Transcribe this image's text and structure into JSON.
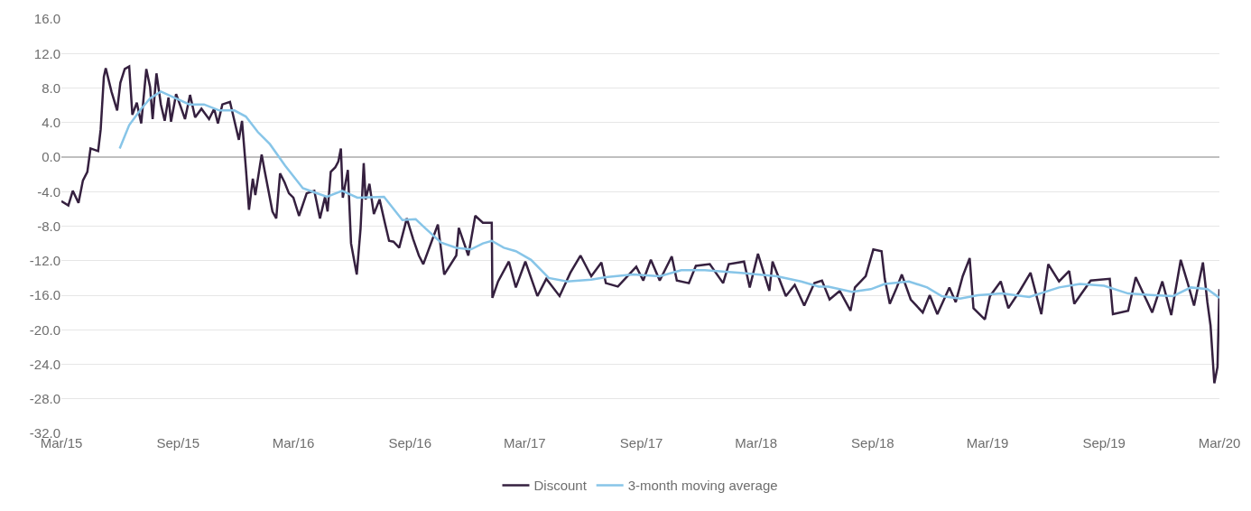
{
  "chart_data": {
    "type": "line",
    "x": [
      "2015-03-01",
      "2015-03-12",
      "2015-03-19",
      "2015-03-28",
      "2015-04-04",
      "2015-04-11",
      "2015-04-16",
      "2015-04-28",
      "2015-05-02",
      "2015-05-07",
      "2015-05-10",
      "2015-05-19",
      "2015-05-28",
      "2015-06-02",
      "2015-06-09",
      "2015-06-16",
      "2015-06-21",
      "2015-06-28",
      "2015-07-05",
      "2015-07-13",
      "2015-07-19",
      "2015-07-23",
      "2015-07-29",
      "2015-08-05",
      "2015-08-11",
      "2015-08-17",
      "2015-08-21",
      "2015-08-29",
      "2015-09-05",
      "2015-09-12",
      "2015-09-20",
      "2015-09-28",
      "2015-10-08",
      "2015-10-20",
      "2015-10-28",
      "2015-11-03",
      "2015-11-10",
      "2015-11-22",
      "2015-11-29",
      "2015-12-06",
      "2015-12-11",
      "2015-12-17",
      "2015-12-22",
      "2015-12-28",
      "2016-01-01",
      "2016-01-11",
      "2016-01-16",
      "2016-01-28",
      "2016-02-03",
      "2016-02-09",
      "2016-02-16",
      "2016-02-23",
      "2016-03-01",
      "2016-03-10",
      "2016-03-22",
      "2016-04-03",
      "2016-04-12",
      "2016-04-20",
      "2016-04-24",
      "2016-04-29",
      "2016-05-06",
      "2016-05-11",
      "2016-05-15",
      "2016-05-18",
      "2016-05-26",
      "2016-05-31",
      "2016-06-05",
      "2016-06-09",
      "2016-06-15",
      "2016-06-20",
      "2016-06-23",
      "2016-06-29",
      "2016-07-06",
      "2016-07-15",
      "2016-07-23",
      "2016-07-30",
      "2016-08-06",
      "2016-08-15",
      "2016-08-27",
      "2016-09-06",
      "2016-09-15",
      "2016-09-22",
      "2016-10-15",
      "2016-10-25",
      "2016-11-13",
      "2016-11-17",
      "2016-12-02",
      "2016-12-13",
      "2016-12-25",
      "2017-01-08",
      "2017-01-09",
      "2017-01-18",
      "2017-02-04",
      "2017-02-15",
      "2017-03-02",
      "2017-03-21",
      "2017-04-04",
      "2017-04-25",
      "2017-05-12",
      "2017-05-28",
      "2017-06-14",
      "2017-06-30",
      "2017-07-07",
      "2017-07-26",
      "2017-08-24",
      "2017-09-04",
      "2017-09-16",
      "2017-09-30",
      "2017-10-19",
      "2017-10-27",
      "2017-11-15",
      "2017-11-26",
      "2017-12-18",
      "2018-01-08",
      "2018-01-17",
      "2018-02-10",
      "2018-02-19",
      "2018-03-04",
      "2018-03-22",
      "2018-03-27",
      "2018-04-17",
      "2018-05-01",
      "2018-05-16",
      "2018-06-01",
      "2018-06-13",
      "2018-06-25",
      "2018-07-11",
      "2018-07-28",
      "2018-08-04",
      "2018-08-21",
      "2018-09-02",
      "2018-09-15",
      "2018-09-20",
      "2018-09-28",
      "2018-10-09",
      "2018-10-17",
      "2018-10-31",
      "2018-11-19",
      "2018-11-30",
      "2018-12-12",
      "2018-12-31",
      "2019-01-10",
      "2019-01-21",
      "2019-02-01",
      "2019-02-07",
      "2019-02-25",
      "2019-03-05",
      "2019-03-22",
      "2019-04-03",
      "2019-04-21",
      "2019-05-08",
      "2019-05-25",
      "2019-06-05",
      "2019-06-22",
      "2019-07-08",
      "2019-07-16",
      "2019-08-11",
      "2019-09-10",
      "2019-09-15",
      "2019-10-09",
      "2019-10-21",
      "2019-11-16",
      "2019-12-02",
      "2019-12-16",
      "2019-12-31",
      "2020-01-11",
      "2020-01-21",
      "2020-02-04",
      "2020-02-11",
      "2020-02-16",
      "2020-02-22",
      "2020-02-27",
      "2020-03-01"
    ],
    "series": [
      {
        "name": "Discount",
        "color": "#35203f",
        "values": [
          -5.1,
          -5.6,
          -3.9,
          -5.3,
          -2.7,
          -1.7,
          1.0,
          0.7,
          3.2,
          9.3,
          10.3,
          7.6,
          5.4,
          8.6,
          10.2,
          10.5,
          4.9,
          6.3,
          3.9,
          10.2,
          8.1,
          4.4,
          9.7,
          6.1,
          4.2,
          6.9,
          4.1,
          7.3,
          5.9,
          4.4,
          7.2,
          4.6,
          5.6,
          4.4,
          5.6,
          3.9,
          6.1,
          6.4,
          4.2,
          2.0,
          4.2,
          -1.2,
          -6.1,
          -2.5,
          -4.4,
          0.3,
          -1.7,
          -6.3,
          -7.1,
          -1.9,
          -2.9,
          -4.2,
          -4.7,
          -6.8,
          -4.2,
          -3.9,
          -7.1,
          -4.6,
          -6.3,
          -1.7,
          -1.2,
          -0.5,
          1.0,
          -4.7,
          -1.5,
          -10.0,
          -12.0,
          -13.6,
          -8.3,
          -0.7,
          -4.9,
          -3.1,
          -6.6,
          -4.9,
          -7.5,
          -9.7,
          -9.8,
          -10.5,
          -7.1,
          -9.5,
          -11.4,
          -12.4,
          -7.8,
          -13.6,
          -11.4,
          -8.2,
          -11.4,
          -6.8,
          -7.6,
          -7.6,
          -16.3,
          -14.4,
          -12.1,
          -15.1,
          -12.1,
          -16.1,
          -14.1,
          -16.1,
          -13.4,
          -11.4,
          -13.8,
          -12.2,
          -14.6,
          -15.0,
          -12.7,
          -14.3,
          -11.9,
          -14.3,
          -11.5,
          -14.3,
          -14.6,
          -12.6,
          -12.4,
          -14.6,
          -12.4,
          -12.1,
          -15.1,
          -11.2,
          -15.5,
          -12.1,
          -16.1,
          -14.8,
          -17.2,
          -14.6,
          -14.3,
          -16.5,
          -15.5,
          -17.8,
          -15.1,
          -13.8,
          -10.7,
          -10.9,
          -14.1,
          -17.0,
          -15.1,
          -13.6,
          -16.5,
          -18.0,
          -16.0,
          -18.2,
          -15.1,
          -16.8,
          -13.8,
          -11.7,
          -17.5,
          -18.8,
          -16.1,
          -14.4,
          -17.5,
          -15.5,
          -13.4,
          -18.2,
          -12.4,
          -14.4,
          -13.2,
          -17.0,
          -14.3,
          -14.1,
          -18.2,
          -17.8,
          -13.9,
          -18.0,
          -14.4,
          -18.3,
          -11.9,
          -14.6,
          -17.2,
          -12.2,
          -16.8,
          -19.5,
          -26.2,
          -24.3,
          -15.3
        ]
      },
      {
        "name": "3-month moving average",
        "color": "#87c5e8",
        "x": [
          "2015-06-01",
          "2015-06-16",
          "2015-07-05",
          "2015-07-19",
          "2015-08-05",
          "2015-08-26",
          "2015-09-19",
          "2015-10-12",
          "2015-11-05",
          "2015-11-29",
          "2015-12-17",
          "2016-01-05",
          "2016-01-24",
          "2016-02-17",
          "2016-03-16",
          "2016-04-04",
          "2016-04-23",
          "2016-05-17",
          "2016-06-10",
          "2016-07-22",
          "2016-08-20",
          "2016-09-10",
          "2016-09-26",
          "2016-10-20",
          "2016-11-13",
          "2016-12-06",
          "2016-12-25",
          "2017-01-08",
          "2017-01-27",
          "2017-02-15",
          "2017-03-11",
          "2017-04-08",
          "2017-05-07",
          "2017-06-14",
          "2017-07-07",
          "2017-08-19",
          "2017-09-30",
          "2017-11-03",
          "2017-12-10",
          "2018-02-05",
          "2018-04-03",
          "2018-05-11",
          "2018-06-08",
          "2018-06-23",
          "2018-07-30",
          "2018-08-29",
          "2018-09-20",
          "2018-10-28",
          "2018-11-26",
          "2018-12-19",
          "2019-01-17",
          "2019-02-14",
          "2019-03-24",
          "2019-05-06",
          "2019-06-22",
          "2019-07-25",
          "2019-09-01",
          "2019-10-09",
          "2019-11-20",
          "2019-12-19",
          "2020-01-16",
          "2020-02-11",
          "2020-03-01"
        ],
        "values": [
          1.0,
          3.7,
          5.6,
          6.8,
          7.6,
          6.9,
          6.1,
          6.1,
          5.4,
          5.4,
          4.7,
          2.9,
          1.5,
          -1.0,
          -3.6,
          -4.1,
          -4.6,
          -3.9,
          -4.7,
          -4.6,
          -7.3,
          -7.2,
          -8.3,
          -9.9,
          -10.5,
          -10.7,
          -10.0,
          -9.7,
          -10.5,
          -10.9,
          -11.9,
          -14.0,
          -14.4,
          -14.2,
          -13.9,
          -13.6,
          -13.8,
          -13.1,
          -13.1,
          -13.4,
          -13.8,
          -14.4,
          -15.0,
          -15.0,
          -15.6,
          -15.3,
          -14.7,
          -14.4,
          -15.1,
          -16.1,
          -16.4,
          -16.0,
          -15.8,
          -16.2,
          -15.1,
          -14.7,
          -14.9,
          -15.8,
          -16.0,
          -16.1,
          -15.1,
          -15.3,
          -16.3
        ]
      }
    ],
    "xlim": [
      "2015-03-01",
      "2020-03-01"
    ],
    "xticks": [
      {
        "value": "2015-03-01",
        "label": "Mar/15"
      },
      {
        "value": "2015-09-01",
        "label": "Sep/15"
      },
      {
        "value": "2016-03-01",
        "label": "Mar/16"
      },
      {
        "value": "2016-09-01",
        "label": "Sep/16"
      },
      {
        "value": "2017-03-01",
        "label": "Mar/17"
      },
      {
        "value": "2017-09-01",
        "label": "Sep/17"
      },
      {
        "value": "2018-03-01",
        "label": "Mar/18"
      },
      {
        "value": "2018-09-01",
        "label": "Sep/18"
      },
      {
        "value": "2019-03-01",
        "label": "Mar/19"
      },
      {
        "value": "2019-09-01",
        "label": "Sep/19"
      },
      {
        "value": "2020-03-01",
        "label": "Mar/20"
      }
    ],
    "ylim": [
      -32,
      16
    ],
    "yticks": [
      {
        "value": 16,
        "label": "16.0"
      },
      {
        "value": 12,
        "label": "12.0"
      },
      {
        "value": 8,
        "label": "8.0"
      },
      {
        "value": 4,
        "label": "4.0"
      },
      {
        "value": 0,
        "label": "0.0"
      },
      {
        "value": -4,
        "label": "-4.0"
      },
      {
        "value": -8,
        "label": "-8.0"
      },
      {
        "value": -12,
        "label": "-12.0"
      },
      {
        "value": -16,
        "label": "-16.0"
      },
      {
        "value": -20,
        "label": "-20.0"
      },
      {
        "value": -24,
        "label": "-24.0"
      },
      {
        "value": -28,
        "label": "-28.0"
      },
      {
        "value": -32,
        "label": "-32.0"
      }
    ],
    "grid": "y",
    "legend": "bottom",
    "line_style": "solid",
    "marker": "none"
  }
}
